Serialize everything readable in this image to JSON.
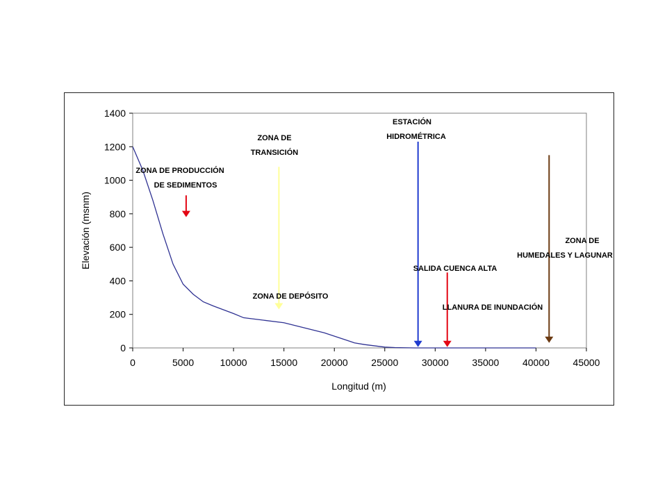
{
  "chart_data": {
    "type": "line",
    "title": "",
    "xlabel": "Longitud (m)",
    "ylabel": "Elevación (msnm)",
    "xlim": [
      0,
      45000
    ],
    "ylim": [
      0,
      1400
    ],
    "x_ticks": [
      0,
      5000,
      10000,
      15000,
      20000,
      25000,
      30000,
      35000,
      40000,
      45000
    ],
    "y_ticks": [
      0,
      200,
      400,
      600,
      800,
      1000,
      1200,
      1400
    ],
    "grid": false,
    "legend": "none",
    "series": [
      {
        "color": "#2e3192",
        "x": [
          0,
          1000,
          2000,
          3000,
          4000,
          5000,
          6000,
          7000,
          8000,
          10000,
          11000,
          13000,
          15000,
          17000,
          19000,
          21000,
          22000,
          23000,
          25000,
          26000,
          28000,
          30000,
          32000,
          35000,
          40000
        ],
        "y": [
          1200,
          1060,
          880,
          680,
          500,
          380,
          320,
          275,
          250,
          205,
          180,
          165,
          150,
          120,
          90,
          50,
          30,
          20,
          5,
          2,
          0,
          0,
          0,
          0,
          0
        ]
      }
    ],
    "annotations": [
      {
        "lines": [
          "ZONA DE PRODUCCIÓN",
          "DE SEDIMENTOS"
        ],
        "color": "#e30613",
        "arrow_x": 5300,
        "arrow_y_top": 910,
        "arrow_y_bottom": 780
      },
      {
        "lines": [
          "ZONA DE",
          "TRANSICIÓN"
        ],
        "color": "#ffff99",
        "arrow_x": 14500,
        "arrow_y_top": 1080,
        "arrow_y_bottom": 230
      },
      {
        "lines": [
          "ZONA DE DEPÓSITO"
        ],
        "color": "",
        "arrow_x": null
      },
      {
        "lines": [
          "ESTACIÓN",
          "HIDROMÉTRICA"
        ],
        "color": "#1f3bcf",
        "arrow_x": 28300,
        "arrow_y_top": 1230,
        "arrow_y_bottom": 5
      },
      {
        "lines": [
          "SALIDA CUENCA ALTA"
        ],
        "color": "#e30613",
        "arrow_x": 31200,
        "arrow_y_top": 450,
        "arrow_y_bottom": 5
      },
      {
        "lines": [
          "LLANURA DE INUNDACIÓN"
        ],
        "color": "",
        "arrow_x": null
      },
      {
        "lines": [
          "ZONA DE",
          "HUMEDALES Y LAGUNAR"
        ],
        "color": "#6b3a12",
        "arrow_x": 41300,
        "arrow_y_top": 1150,
        "arrow_y_bottom": 30
      }
    ]
  }
}
